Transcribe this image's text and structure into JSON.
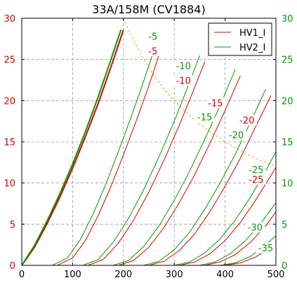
{
  "chart_data": {
    "type": "line",
    "title": "33A/158M (CV1884)",
    "xlabel": "",
    "ylabel": "",
    "xlim": [
      0,
      500
    ],
    "ylim": [
      0,
      30
    ],
    "x_ticks": [
      0,
      100,
      200,
      300,
      400,
      500
    ],
    "y_ticks": [
      0,
      5,
      10,
      15,
      20,
      25,
      30
    ],
    "y2_ticks": [
      0,
      5,
      10,
      15,
      20,
      25,
      30
    ],
    "grid": true,
    "legend": "top-right",
    "legend_entries": [
      "HV1_I",
      "HV2_I"
    ],
    "colors": {
      "HV1_I": "#d40000",
      "HV2_I": "#009900",
      "dissipation": "#f0a000",
      "grid": "#9a9a9a"
    },
    "series": [
      {
        "name": "HV1_I",
        "color": "#d40000",
        "curves": [
          {
            "label": "0",
            "points": [
              [
                0,
                0
              ],
              [
                25,
                2.2
              ],
              [
                50,
                5.1
              ],
              [
                75,
                8.3
              ],
              [
                100,
                11.8
              ],
              [
                125,
                15.6
              ],
              [
                150,
                19.6
              ],
              [
                175,
                24
              ],
              [
                200,
                28.6
              ]
            ]
          },
          {
            "label": "-5",
            "points": [
              [
                70,
                0
              ],
              [
                100,
                0.9
              ],
              [
                125,
                3
              ],
              [
                150,
                6
              ],
              [
                175,
                9.5
              ],
              [
                200,
                13.4
              ],
              [
                225,
                17.5
              ],
              [
                250,
                21.8
              ],
              [
                270,
                25.5
              ]
            ]
          },
          {
            "label": "-10",
            "points": [
              [
                130,
                0
              ],
              [
                160,
                0.7
              ],
              [
                190,
                2.7
              ],
              [
                220,
                5.5
              ],
              [
                250,
                8.9
              ],
              [
                280,
                12.8
              ],
              [
                310,
                17
              ],
              [
                340,
                21.6
              ],
              [
                360,
                24.7
              ]
            ]
          },
          {
            "label": "-15",
            "points": [
              [
                190,
                0
              ],
              [
                220,
                0.6
              ],
              [
                250,
                2.2
              ],
              [
                280,
                4.6
              ],
              [
                310,
                7.6
              ],
              [
                340,
                11
              ],
              [
                370,
                14.8
              ],
              [
                400,
                18.8
              ],
              [
                430,
                23
              ]
            ]
          },
          {
            "label": "-20",
            "points": [
              [
                250,
                0
              ],
              [
                280,
                0.5
              ],
              [
                310,
                1.8
              ],
              [
                340,
                3.8
              ],
              [
                370,
                6.5
              ],
              [
                400,
                9.6
              ],
              [
                430,
                13
              ],
              [
                460,
                16.8
              ],
              [
                490,
                20.6
              ]
            ]
          },
          {
            "label": "-25",
            "points": [
              [
                310,
                0
              ],
              [
                340,
                0.4
              ],
              [
                370,
                1.4
              ],
              [
                400,
                3
              ],
              [
                430,
                5.2
              ],
              [
                460,
                7.9
              ],
              [
                490,
                10.9
              ],
              [
                500,
                11.9
              ]
            ]
          },
          {
            "label": "-30",
            "points": [
              [
                360,
                0
              ],
              [
                390,
                0.4
              ],
              [
                420,
                1.3
              ],
              [
                450,
                2.8
              ],
              [
                480,
                4.8
              ],
              [
                500,
                6.5
              ]
            ]
          },
          {
            "label": "-35",
            "points": [
              [
                400,
                0
              ],
              [
                430,
                0.3
              ],
              [
                460,
                1
              ],
              [
                490,
                2.3
              ],
              [
                500,
                2.8
              ]
            ]
          }
        ]
      },
      {
        "name": "HV2_I",
        "color": "#009900",
        "curves": [
          {
            "label": "0",
            "points": [
              [
                0,
                0
              ],
              [
                25,
                2.4
              ],
              [
                50,
                5.4
              ],
              [
                75,
                8.7
              ],
              [
                100,
                12.3
              ],
              [
                125,
                16.2
              ],
              [
                150,
                20.4
              ],
              [
                175,
                24.9
              ],
              [
                195,
                28.6
              ]
            ]
          },
          {
            "label": "-5",
            "points": [
              [
                60,
                0
              ],
              [
                90,
                0.9
              ],
              [
                115,
                3.1
              ],
              [
                140,
                6.2
              ],
              [
                165,
                9.8
              ],
              [
                190,
                13.8
              ],
              [
                215,
                18
              ],
              [
                240,
                22.4
              ],
              [
                262,
                26.5
              ]
            ]
          },
          {
            "label": "-10",
            "points": [
              [
                120,
                0
              ],
              [
                150,
                0.7
              ],
              [
                180,
                2.8
              ],
              [
                210,
                5.7
              ],
              [
                240,
                9.2
              ],
              [
                270,
                13.2
              ],
              [
                300,
                17.5
              ],
              [
                330,
                22.2
              ],
              [
                350,
                25.5
              ]
            ]
          },
          {
            "label": "-15",
            "points": [
              [
                180,
                0
              ],
              [
                210,
                0.6
              ],
              [
                240,
                2.3
              ],
              [
                270,
                4.8
              ],
              [
                300,
                7.9
              ],
              [
                330,
                11.4
              ],
              [
                360,
                15.3
              ],
              [
                390,
                19.4
              ],
              [
                420,
                23.8
              ]
            ]
          },
          {
            "label": "-20",
            "points": [
              [
                240,
                0
              ],
              [
                270,
                0.5
              ],
              [
                300,
                1.9
              ],
              [
                330,
                4
              ],
              [
                360,
                6.8
              ],
              [
                390,
                10
              ],
              [
                420,
                13.5
              ],
              [
                450,
                17.4
              ],
              [
                480,
                21.4
              ]
            ]
          },
          {
            "label": "-25",
            "points": [
              [
                300,
                0
              ],
              [
                330,
                0.4
              ],
              [
                360,
                1.5
              ],
              [
                390,
                3.2
              ],
              [
                420,
                5.5
              ],
              [
                450,
                8.3
              ],
              [
                480,
                11.5
              ],
              [
                500,
                13.8
              ]
            ]
          },
          {
            "label": "-30",
            "points": [
              [
                350,
                0
              ],
              [
                380,
                0.4
              ],
              [
                410,
                1.4
              ],
              [
                440,
                3
              ],
              [
                470,
                5.1
              ],
              [
                500,
                7.6
              ]
            ]
          },
          {
            "label": "-35",
            "points": [
              [
                390,
                0
              ],
              [
                420,
                0.3
              ],
              [
                450,
                1.1
              ],
              [
                480,
                2.5
              ],
              [
                500,
                3.6
              ]
            ]
          }
        ]
      }
    ],
    "dissipation_curve": [
      [
        200,
        30
      ],
      [
        220,
        27.3
      ],
      [
        240,
        25
      ],
      [
        260,
        23.1
      ],
      [
        280,
        21.4
      ],
      [
        300,
        20
      ],
      [
        320,
        18.8
      ],
      [
        340,
        17.6
      ],
      [
        360,
        16.7
      ],
      [
        380,
        15.8
      ],
      [
        400,
        15
      ],
      [
        420,
        14.3
      ],
      [
        440,
        13.6
      ],
      [
        460,
        13
      ],
      [
        480,
        12.5
      ],
      [
        500,
        12
      ]
    ],
    "annotations": [
      {
        "text": "-5",
        "color": "#009900",
        "x": 258,
        "y": 27.8
      },
      {
        "text": "-5",
        "color": "#d40000",
        "x": 258,
        "y": 26.0
      },
      {
        "text": "-10",
        "color": "#009900",
        "x": 318,
        "y": 24.2
      },
      {
        "text": "-10",
        "color": "#d40000",
        "x": 318,
        "y": 22.4
      },
      {
        "text": "-15",
        "color": "#d40000",
        "x": 381,
        "y": 19.7
      },
      {
        "text": "-15",
        "color": "#009900",
        "x": 360,
        "y": 18.0
      },
      {
        "text": "-20",
        "color": "#d40000",
        "x": 443,
        "y": 17.6
      },
      {
        "text": "-20",
        "color": "#009900",
        "x": 422,
        "y": 15.8
      },
      {
        "text": "-25",
        "color": "#009900",
        "x": 461,
        "y": 11.6
      },
      {
        "text": "-25",
        "color": "#d40000",
        "x": 461,
        "y": 10.4
      },
      {
        "text": "-30",
        "color": "#009900",
        "x": 459,
        "y": 4.6
      },
      {
        "text": "-35",
        "color": "#009900",
        "x": 480,
        "y": 2.1
      }
    ]
  }
}
